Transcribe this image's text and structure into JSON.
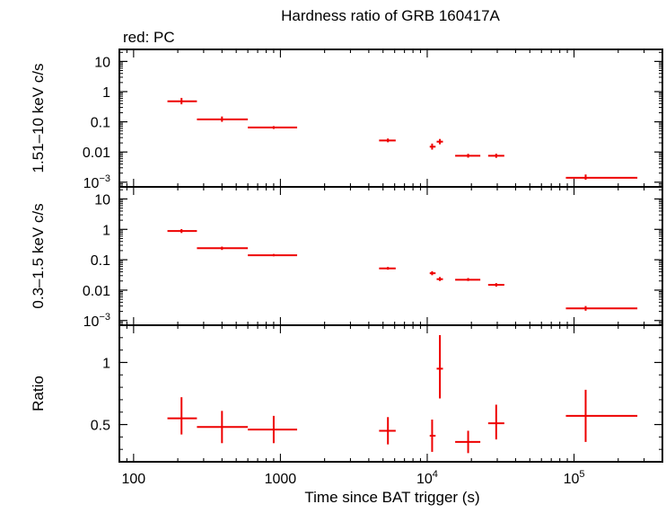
{
  "title": "Hardness ratio of GRB 160417A",
  "subtitle": "red: PC",
  "colors": {
    "data": "#ee0000",
    "frame": "#000000",
    "background": "#ffffff"
  },
  "chart_data": {
    "type": "scatter",
    "xscale": "log",
    "xlabel": "Time since BAT trigger (s)",
    "xlim": [
      80,
      400000
    ],
    "xticks": [
      {
        "value": 100,
        "label": "100",
        "exp": ""
      },
      {
        "value": 1000,
        "label": "1000",
        "exp": ""
      },
      {
        "value": 10000,
        "label": "10",
        "exp": "4"
      },
      {
        "value": 100000,
        "label": "10",
        "exp": "5"
      }
    ],
    "grid": false,
    "panels": [
      {
        "ylabel": "1.51–10 keV c/s",
        "yscale": "log",
        "ylim": [
          0.0007,
          25
        ],
        "yticks": [
          {
            "value": 10,
            "label": "10",
            "exp": ""
          },
          {
            "value": 1,
            "label": "1",
            "exp": ""
          },
          {
            "value": 0.1,
            "label": "0.1",
            "exp": ""
          },
          {
            "value": 0.01,
            "label": "0.01",
            "exp": ""
          },
          {
            "value": 0.001,
            "label": "10",
            "exp": "−3"
          }
        ],
        "points": [
          {
            "x": 212,
            "xlo": 170,
            "xhi": 270,
            "y": 0.48,
            "ylo": 0.38,
            "yhi": 0.62
          },
          {
            "x": 400,
            "xlo": 270,
            "xhi": 600,
            "y": 0.12,
            "ylo": 0.1,
            "yhi": 0.15
          },
          {
            "x": 900,
            "xlo": 600,
            "xhi": 1300,
            "y": 0.065,
            "ylo": 0.058,
            "yhi": 0.072
          },
          {
            "x": 5400,
            "xlo": 4700,
            "xhi": 6100,
            "y": 0.024,
            "ylo": 0.021,
            "yhi": 0.028
          },
          {
            "x": 10800,
            "xlo": 10400,
            "xhi": 11400,
            "y": 0.015,
            "ylo": 0.012,
            "yhi": 0.019
          },
          {
            "x": 12200,
            "xlo": 11600,
            "xhi": 12800,
            "y": 0.022,
            "ylo": 0.018,
            "yhi": 0.027
          },
          {
            "x": 19000,
            "xlo": 15500,
            "xhi": 23000,
            "y": 0.0075,
            "ylo": 0.0065,
            "yhi": 0.0087
          },
          {
            "x": 29500,
            "xlo": 26000,
            "xhi": 33500,
            "y": 0.0075,
            "ylo": 0.0064,
            "yhi": 0.0088
          },
          {
            "x": 120000,
            "xlo": 88000,
            "xhi": 270000,
            "y": 0.0014,
            "ylo": 0.0012,
            "yhi": 0.0018
          }
        ]
      },
      {
        "ylabel": "0.3–1.5 keV c/s",
        "yscale": "log",
        "ylim": [
          0.0007,
          25
        ],
        "yticks": [
          {
            "value": 10,
            "label": "10",
            "exp": ""
          },
          {
            "value": 1,
            "label": "1",
            "exp": ""
          },
          {
            "value": 0.1,
            "label": "0.1",
            "exp": ""
          },
          {
            "value": 0.01,
            "label": "0.01",
            "exp": ""
          },
          {
            "value": 0.001,
            "label": "10",
            "exp": "−3"
          }
        ],
        "points": [
          {
            "x": 212,
            "xlo": 170,
            "xhi": 270,
            "y": 0.88,
            "ylo": 0.76,
            "yhi": 1.02
          },
          {
            "x": 400,
            "xlo": 270,
            "xhi": 600,
            "y": 0.24,
            "ylo": 0.21,
            "yhi": 0.27
          },
          {
            "x": 900,
            "xlo": 600,
            "xhi": 1300,
            "y": 0.14,
            "ylo": 0.13,
            "yhi": 0.155
          },
          {
            "x": 5400,
            "xlo": 4700,
            "xhi": 6100,
            "y": 0.052,
            "ylo": 0.047,
            "yhi": 0.058
          },
          {
            "x": 10800,
            "xlo": 10400,
            "xhi": 11400,
            "y": 0.036,
            "ylo": 0.031,
            "yhi": 0.042
          },
          {
            "x": 12200,
            "xlo": 11600,
            "xhi": 12800,
            "y": 0.023,
            "ylo": 0.02,
            "yhi": 0.027
          },
          {
            "x": 19000,
            "xlo": 15500,
            "xhi": 23000,
            "y": 0.022,
            "ylo": 0.02,
            "yhi": 0.025
          },
          {
            "x": 29500,
            "xlo": 26000,
            "xhi": 33500,
            "y": 0.015,
            "ylo": 0.013,
            "yhi": 0.017
          },
          {
            "x": 120000,
            "xlo": 88000,
            "xhi": 270000,
            "y": 0.0025,
            "ylo": 0.0021,
            "yhi": 0.003
          }
        ]
      },
      {
        "ylabel": "Ratio",
        "yscale": "linear",
        "ylim": [
          0.2,
          1.3
        ],
        "yticks": [
          {
            "value": 1,
            "label": "1",
            "exp": ""
          },
          {
            "value": 0.5,
            "label": "0.5",
            "exp": ""
          }
        ],
        "points": [
          {
            "x": 212,
            "xlo": 170,
            "xhi": 270,
            "y": 0.55,
            "ylo": 0.42,
            "yhi": 0.72
          },
          {
            "x": 400,
            "xlo": 270,
            "xhi": 600,
            "y": 0.48,
            "ylo": 0.35,
            "yhi": 0.61
          },
          {
            "x": 900,
            "xlo": 600,
            "xhi": 1300,
            "y": 0.46,
            "ylo": 0.35,
            "yhi": 0.57
          },
          {
            "x": 5400,
            "xlo": 4700,
            "xhi": 6100,
            "y": 0.45,
            "ylo": 0.34,
            "yhi": 0.56
          },
          {
            "x": 10800,
            "xlo": 10400,
            "xhi": 11400,
            "y": 0.41,
            "ylo": 0.28,
            "yhi": 0.54
          },
          {
            "x": 12200,
            "xlo": 11600,
            "xhi": 12800,
            "y": 0.95,
            "ylo": 0.71,
            "yhi": 1.22
          },
          {
            "x": 19000,
            "xlo": 15500,
            "xhi": 23000,
            "y": 0.36,
            "ylo": 0.27,
            "yhi": 0.45
          },
          {
            "x": 29500,
            "xlo": 26000,
            "xhi": 33500,
            "y": 0.51,
            "ylo": 0.38,
            "yhi": 0.66
          },
          {
            "x": 120000,
            "xlo": 88000,
            "xhi": 270000,
            "y": 0.57,
            "ylo": 0.36,
            "yhi": 0.78
          }
        ]
      }
    ]
  }
}
